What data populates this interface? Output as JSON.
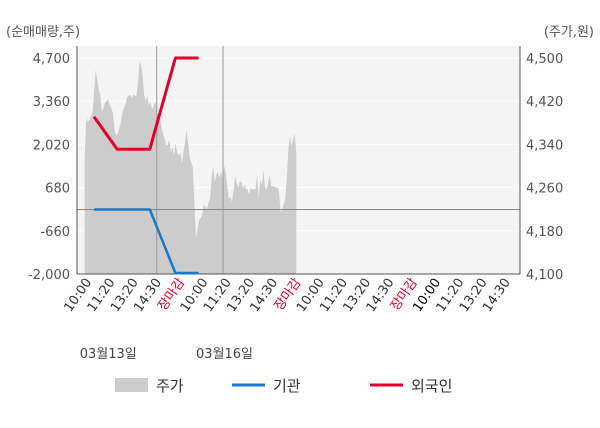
{
  "chart_data": {
    "type": "line",
    "left_axis_unit": "(순매매량,주)",
    "right_axis_unit": "(주가,원)",
    "left_ticks": [
      "4,700",
      "3,360",
      "2,020",
      "680",
      "-660",
      "-2,000"
    ],
    "right_ticks": [
      "4,500",
      "4,420",
      "4,340",
      "4,260",
      "4,180",
      "4,100"
    ],
    "ylim_left": [
      -2000,
      4700
    ],
    "ylim_right": [
      4100,
      4500
    ],
    "x_labels": [
      {
        "text": "10:00",
        "color": "#333333"
      },
      {
        "text": "11:20",
        "color": "#333333"
      },
      {
        "text": "13:20",
        "color": "#333333"
      },
      {
        "text": "14:30",
        "color": "#333333"
      },
      {
        "text": "장마감",
        "color": "#e4002b"
      },
      {
        "text": "10:00",
        "color": "#333333"
      },
      {
        "text": "11:20",
        "color": "#333333"
      },
      {
        "text": "13:20",
        "color": "#333333"
      },
      {
        "text": "14:30",
        "color": "#333333"
      },
      {
        "text": "장마감",
        "color": "#e4002b"
      },
      {
        "text": "10:00",
        "color": "#333333"
      },
      {
        "text": "11:20",
        "color": "#333333"
      },
      {
        "text": "13:20",
        "color": "#333333"
      },
      {
        "text": "14:30",
        "color": "#333333"
      },
      {
        "text": "장마감",
        "color": "#e4002b"
      },
      {
        "text": "10:00",
        "color": "#000000"
      },
      {
        "text": "11:20",
        "color": "#333333"
      },
      {
        "text": "13:20",
        "color": "#333333"
      },
      {
        "text": "14:30",
        "color": "#333333"
      }
    ],
    "date_labels": [
      {
        "text": "03월13일",
        "at_label": 1
      },
      {
        "text": "03월16일",
        "at_label": 6
      }
    ],
    "series": [
      {
        "name": "주가",
        "axis": "right",
        "style": "area",
        "color": "#cccccc",
        "x_start": -0.1,
        "x_end": 9.0,
        "values": [
          4316,
          4388,
          4382,
          4384,
          4392,
          4398,
          4436,
          4478,
          4460,
          4440,
          4433,
          4400,
          4408,
          4418,
          4420,
          4424,
          4412,
          4408,
          4398,
          4368,
          4356,
          4360,
          4370,
          4380,
          4398,
          4408,
          4413,
          4427,
          4430,
          4432,
          4426,
          4433,
          4430,
          4430,
          4455,
          4494,
          4486,
          4466,
          4430,
          4420,
          4430,
          4412,
          4420,
          4405,
          4410,
          4420,
          4400,
          4396,
          4388,
          4373,
          4358,
          4352,
          4338,
          4340,
          4348,
          4326,
          4335,
          4320,
          4342,
          4325,
          4320,
          4325,
          4305,
          4325,
          4344,
          4366,
          4342,
          4316,
          4306,
          4298,
          4230,
          4168,
          4183,
          4200,
          4204,
          4210,
          4228,
          4225,
          4220,
          4233,
          4240,
          4278,
          4300,
          4270,
          4283,
          4290,
          4278,
          4290,
          4276,
          4300,
          4288,
          4262,
          4238,
          4244,
          4232,
          4255,
          4282,
          4268,
          4260,
          4272,
          4270,
          4258,
          4265,
          4258,
          4256,
          4247,
          4260,
          4255,
          4258,
          4256,
          4285,
          4240,
          4274,
          4265,
          4292,
          4262,
          4256,
          4268,
          4282,
          4263,
          4262,
          4262,
          4260,
          4260,
          4253,
          4215,
          4218,
          4230,
          4240,
          4280,
          4335,
          4355,
          4336,
          4350,
          4360,
          4320
        ]
      },
      {
        "name": "기관",
        "axis": "left",
        "style": "line",
        "color": "#1a7ac4",
        "x": [
          0.3,
          2.7,
          3.8,
          4.8
        ],
        "values": [
          0,
          0,
          -1970,
          -1970
        ]
      },
      {
        "name": "외국인",
        "axis": "left",
        "style": "line",
        "color": "#e4002b",
        "x": [
          0.3,
          1.3,
          2.7,
          3.8,
          4.8
        ],
        "values": [
          2880,
          1870,
          1870,
          4700,
          4700
        ]
      }
    ],
    "legend": [
      {
        "name": "주가",
        "color": "#cccccc",
        "shape": "box"
      },
      {
        "name": "기관",
        "color": "#1a7ac4",
        "shape": "line"
      },
      {
        "name": "외국인",
        "color": "#e4002b",
        "shape": "line"
      }
    ],
    "legend_position": "bottom",
    "grid": true
  }
}
